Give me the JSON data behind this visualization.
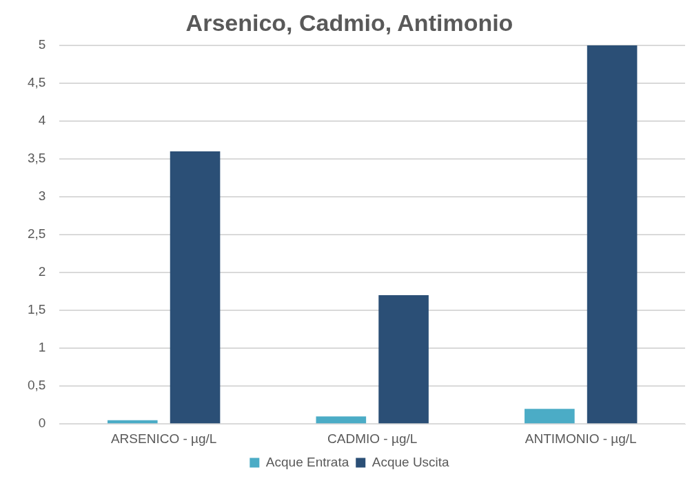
{
  "chart_data": {
    "type": "bar",
    "title": "Arsenico, Cadmio, Antimonio",
    "categories": [
      "ARSENICO - µg/L",
      "CADMIO - µg/L",
      "ANTIMONIO - µg/L"
    ],
    "series": [
      {
        "name": "Acque Entrata",
        "color": "#4bacc6",
        "values": [
          0.05,
          0.1,
          0.2
        ]
      },
      {
        "name": "Acque Uscita",
        "color": "#2b4f76",
        "values": [
          3.6,
          1.7,
          5
        ]
      }
    ],
    "ylim": [
      0,
      5
    ],
    "yticks": [
      0,
      {
        "value": 0.5,
        "label": "0,5"
      },
      1,
      {
        "value": 1.5,
        "label": "1,5"
      },
      2,
      {
        "value": 2.5,
        "label": "2,5"
      },
      3,
      {
        "value": 3.5,
        "label": "3,5"
      },
      4,
      {
        "value": 4.5,
        "label": "4,5"
      },
      5
    ],
    "grid": "y",
    "legend": "bottom"
  }
}
